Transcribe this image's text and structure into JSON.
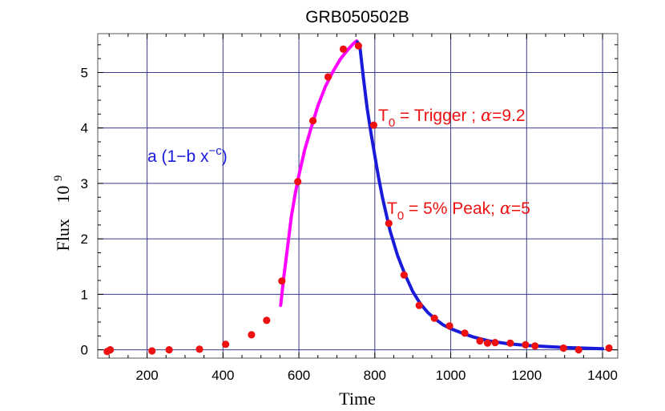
{
  "chart_data": {
    "type": "scatter",
    "title": "GRB050502B",
    "xlabel": "Time",
    "ylabel": "Flux",
    "ylabel_exponent": "10",
    "ylabel_exponent_power": "9",
    "xlim": [
      70,
      1440
    ],
    "ylim": [
      -0.15,
      5.7
    ],
    "grid": true,
    "x_ticks": [
      200,
      400,
      600,
      800,
      1000,
      1200,
      1400
    ],
    "y_ticks": [
      0,
      1,
      2,
      3,
      4,
      5
    ],
    "series": [
      {
        "kind": "points",
        "color": "#ee1111",
        "points": [
          [
            95,
            -0.03
          ],
          [
            103,
            0.0
          ],
          [
            213,
            -0.02
          ],
          [
            258,
            0.0
          ],
          [
            338,
            0.01
          ],
          [
            407,
            0.1
          ],
          [
            475,
            0.27
          ],
          [
            515,
            0.53
          ],
          [
            555,
            1.24
          ],
          [
            597,
            3.03
          ],
          [
            637,
            4.13
          ],
          [
            677,
            4.92
          ],
          [
            717,
            5.42
          ],
          [
            757,
            5.48
          ],
          [
            797,
            4.05
          ],
          [
            837,
            2.28
          ],
          [
            877,
            1.35
          ],
          [
            917,
            0.8
          ],
          [
            957,
            0.57
          ],
          [
            997,
            0.43
          ],
          [
            1037,
            0.3
          ],
          [
            1077,
            0.16
          ],
          [
            1097,
            0.12
          ],
          [
            1117,
            0.13
          ],
          [
            1157,
            0.12
          ],
          [
            1197,
            0.09
          ],
          [
            1222,
            0.07
          ],
          [
            1297,
            0.03
          ],
          [
            1337,
            0.0
          ],
          [
            1417,
            0.03
          ]
        ]
      },
      {
        "kind": "line",
        "color": "#ff00ff",
        "points": [
          [
            552,
            0.8
          ],
          [
            560,
            1.3
          ],
          [
            570,
            1.85
          ],
          [
            580,
            2.4
          ],
          [
            590,
            2.8
          ],
          [
            600,
            3.15
          ],
          [
            615,
            3.6
          ],
          [
            630,
            3.95
          ],
          [
            650,
            4.4
          ],
          [
            670,
            4.75
          ],
          [
            690,
            5.02
          ],
          [
            710,
            5.25
          ],
          [
            730,
            5.42
          ],
          [
            745,
            5.53
          ],
          [
            752,
            5.57
          ]
        ]
      },
      {
        "kind": "line",
        "color": "#1a1ad9",
        "points": [
          [
            754,
            5.55
          ],
          [
            760,
            5.5
          ],
          [
            770,
            4.9
          ],
          [
            780,
            4.35
          ],
          [
            790,
            3.9
          ],
          [
            800,
            3.5
          ],
          [
            810,
            3.1
          ],
          [
            820,
            2.75
          ],
          [
            830,
            2.45
          ],
          [
            840,
            2.15
          ],
          [
            860,
            1.7
          ],
          [
            880,
            1.35
          ],
          [
            900,
            1.05
          ],
          [
            920,
            0.83
          ],
          [
            940,
            0.67
          ],
          [
            960,
            0.55
          ],
          [
            980,
            0.45
          ],
          [
            1000,
            0.38
          ],
          [
            1030,
            0.3
          ],
          [
            1060,
            0.23
          ],
          [
            1100,
            0.16
          ],
          [
            1150,
            0.11
          ],
          [
            1200,
            0.08
          ],
          [
            1250,
            0.06
          ],
          [
            1300,
            0.04
          ],
          [
            1350,
            0.03
          ],
          [
            1400,
            0.02
          ]
        ]
      }
    ],
    "annotations": [
      {
        "text_main": "T",
        "text_sub": "0",
        "text_rest": " = Trigger ; ",
        "symbol": "α",
        "value": "=9.2",
        "color": "#ee1111"
      },
      {
        "text_main": "T",
        "text_sub": "0",
        "text_rest": " = 5% Peak; ",
        "symbol": "α",
        "value": "=5",
        "color": "#ee1111"
      },
      {
        "text_main": "a (1−b x",
        "text_sup": "−c",
        "text_rest": ")",
        "color": "#1a1ad9"
      }
    ]
  }
}
